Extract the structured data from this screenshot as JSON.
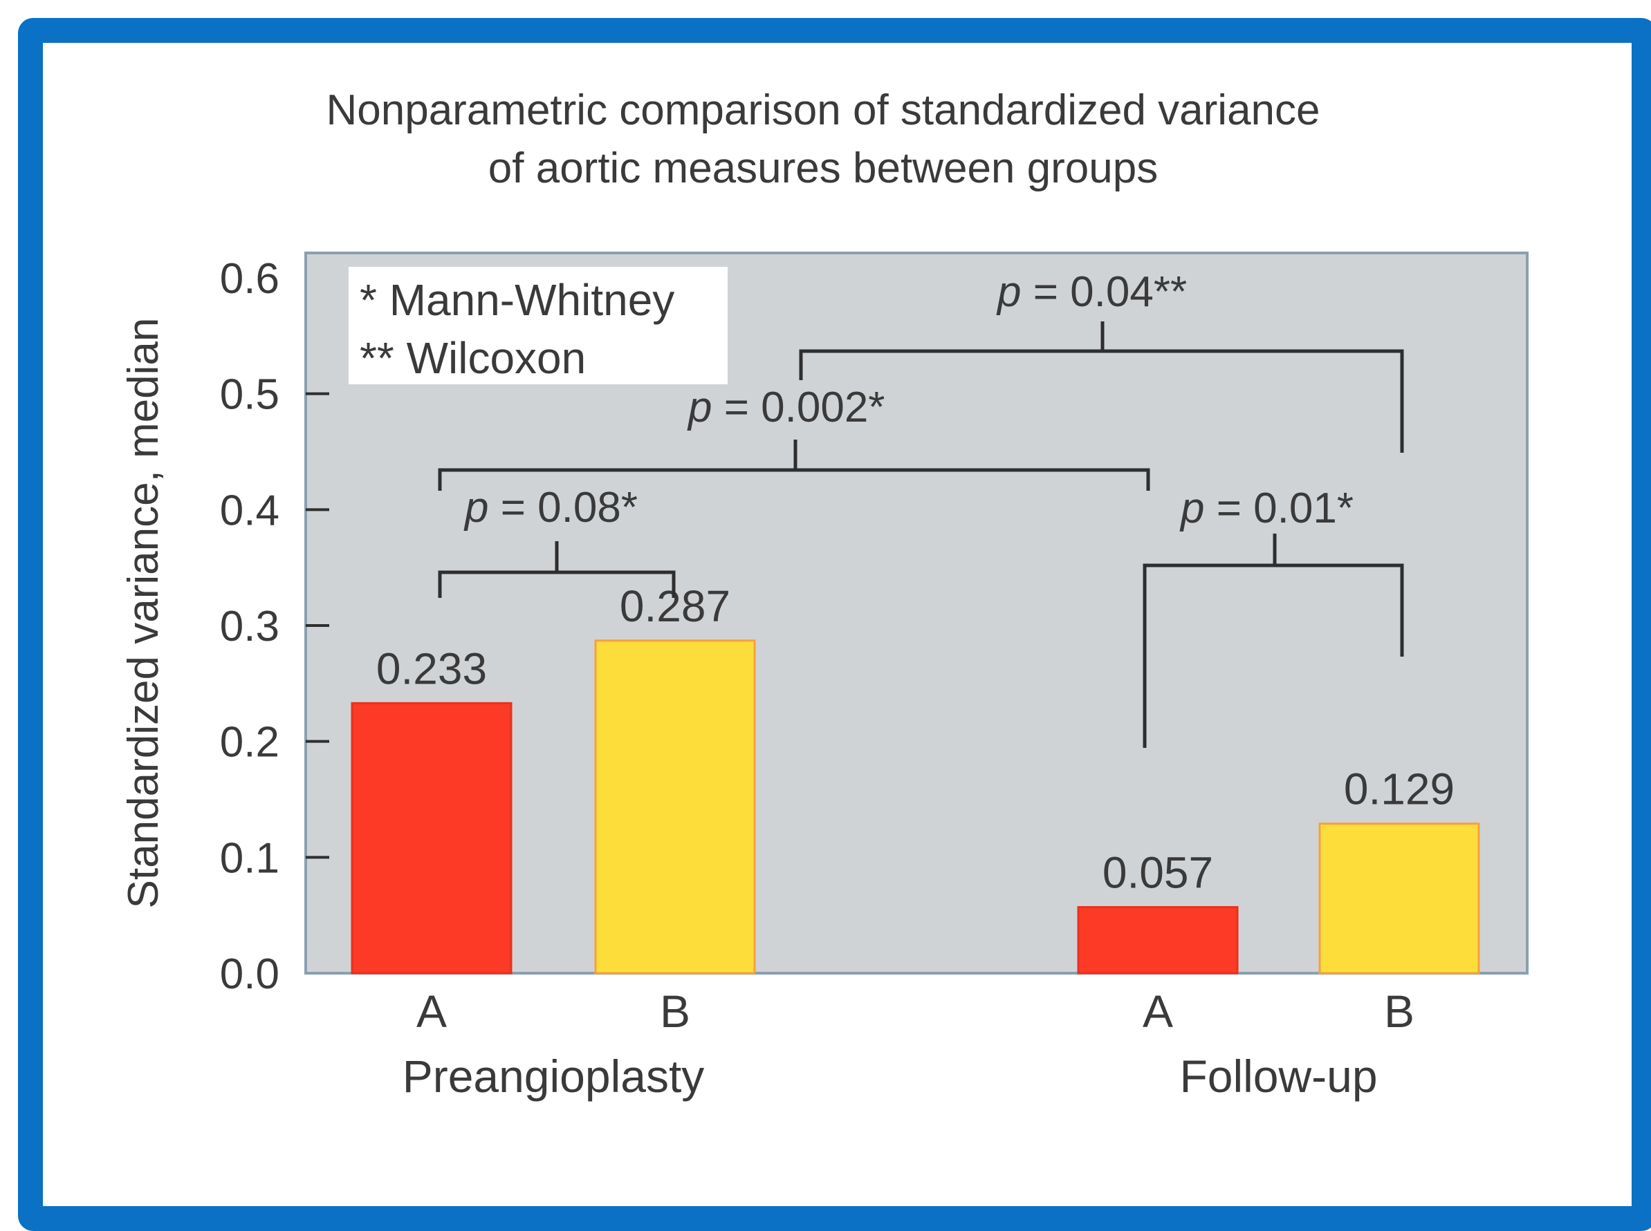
{
  "chart_data": {
    "type": "bar",
    "title_line1": "Nonparametric comparison of standardized variance",
    "title_line2": "of aortic measures between groups",
    "ylabel": "Standardized variance, median",
    "xlabel": "",
    "ylim": [
      0,
      0.6
    ],
    "yticks": [
      "0.0",
      "0.1",
      "0.2",
      "0.3",
      "0.4",
      "0.5",
      "0.6"
    ],
    "grid": false,
    "plot_background": "#d0d3d6",
    "groups": [
      {
        "name": "Preangioplasty",
        "bars": [
          {
            "category": "A",
            "value": 0.233,
            "label": "0.233",
            "color": "#fc3a26"
          },
          {
            "category": "B",
            "value": 0.287,
            "label": "0.287",
            "color": "#fddd3a"
          }
        ]
      },
      {
        "name": "Follow-up",
        "bars": [
          {
            "category": "A",
            "value": 0.057,
            "label": "0.057",
            "color": "#fc3a26"
          },
          {
            "category": "B",
            "value": 0.129,
            "label": "0.129",
            "color": "#fddd3a"
          }
        ]
      }
    ],
    "legend": {
      "placement": "top-left",
      "lines": [
        "* Mann-Whitney",
        "** Wilcoxon"
      ]
    },
    "comparisons": [
      {
        "between": [
          "Preangioplasty A",
          "Preangioplasty B"
        ],
        "p_symbol": "p",
        "p_value": " = 0.08*"
      },
      {
        "between": [
          "Preangioplasty A",
          "Follow-up A"
        ],
        "p_symbol": "p",
        "p_value": " = 0.002*"
      },
      {
        "between": [
          "Follow-up A",
          "Follow-up B"
        ],
        "p_symbol": "p",
        "p_value": " = 0.01*"
      },
      {
        "between": [
          "Preangioplasty B",
          "Follow-up B"
        ],
        "p_symbol": "p",
        "p_value": " = 0.04**"
      }
    ]
  }
}
